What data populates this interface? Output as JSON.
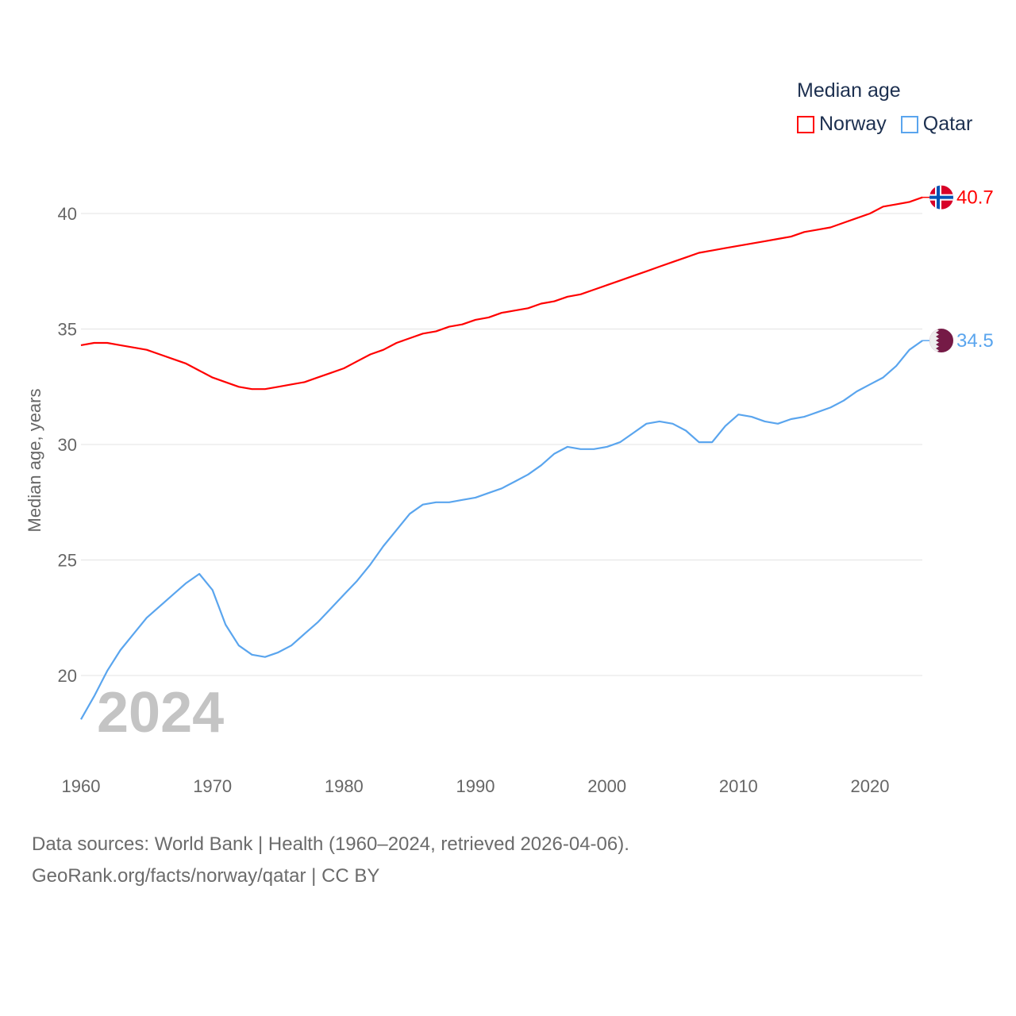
{
  "chart_data": {
    "type": "line",
    "title": "Median age",
    "xlabel": "",
    "ylabel": "Median age, years",
    "xlim": [
      1960,
      2024
    ],
    "ylim": [
      18,
      41
    ],
    "yticks": [
      20,
      25,
      30,
      35,
      40
    ],
    "xticks": [
      1960,
      1970,
      1980,
      1990,
      2000,
      2010,
      2020
    ],
    "grid": true,
    "legend_placement": "top-right",
    "year_watermark": "2024",
    "x": [
      1960,
      1961,
      1962,
      1963,
      1964,
      1965,
      1966,
      1967,
      1968,
      1969,
      1970,
      1971,
      1972,
      1973,
      1974,
      1975,
      1976,
      1977,
      1978,
      1979,
      1980,
      1981,
      1982,
      1983,
      1984,
      1985,
      1986,
      1987,
      1988,
      1989,
      1990,
      1991,
      1992,
      1993,
      1994,
      1995,
      1996,
      1997,
      1998,
      1999,
      2000,
      2001,
      2002,
      2003,
      2004,
      2005,
      2006,
      2007,
      2008,
      2009,
      2010,
      2011,
      2012,
      2013,
      2014,
      2015,
      2016,
      2017,
      2018,
      2019,
      2020,
      2021,
      2022,
      2023,
      2024
    ],
    "series": [
      {
        "name": "Norway",
        "color": "#ff0000",
        "end_label": "40.7",
        "values": [
          34.3,
          34.4,
          34.4,
          34.3,
          34.2,
          34.1,
          33.9,
          33.7,
          33.5,
          33.2,
          32.9,
          32.7,
          32.5,
          32.4,
          32.4,
          32.5,
          32.6,
          32.7,
          32.9,
          33.1,
          33.3,
          33.6,
          33.9,
          34.1,
          34.4,
          34.6,
          34.8,
          34.9,
          35.1,
          35.2,
          35.4,
          35.5,
          35.7,
          35.8,
          35.9,
          36.1,
          36.2,
          36.4,
          36.5,
          36.7,
          36.9,
          37.1,
          37.3,
          37.5,
          37.7,
          37.9,
          38.1,
          38.3,
          38.4,
          38.5,
          38.6,
          38.7,
          38.8,
          38.9,
          39.0,
          39.2,
          39.3,
          39.4,
          39.6,
          39.8,
          40.0,
          40.3,
          40.4,
          40.5,
          40.7
        ]
      },
      {
        "name": "Qatar",
        "color": "#5aa5ee",
        "end_label": "34.5",
        "values": [
          18.1,
          19.1,
          20.2,
          21.1,
          21.8,
          22.5,
          23.0,
          23.5,
          24.0,
          24.4,
          23.7,
          22.2,
          21.3,
          20.9,
          20.8,
          21.0,
          21.3,
          21.8,
          22.3,
          22.9,
          23.5,
          24.1,
          24.8,
          25.6,
          26.3,
          27.0,
          27.4,
          27.5,
          27.5,
          27.6,
          27.7,
          27.9,
          28.1,
          28.4,
          28.7,
          29.1,
          29.6,
          29.9,
          29.8,
          29.8,
          29.9,
          30.1,
          30.5,
          30.9,
          31.0,
          30.9,
          30.6,
          30.1,
          30.1,
          30.8,
          31.3,
          31.2,
          31.0,
          30.9,
          31.1,
          31.2,
          31.4,
          31.6,
          31.9,
          32.3,
          32.6,
          32.9,
          33.4,
          34.1,
          34.5
        ]
      }
    ]
  },
  "footer": {
    "source_line": "Data sources: World Bank | Health (1960–2024, retrieved 2026-04-06).",
    "credit_line": "GeoRank.org/facts/norway/qatar | CC BY"
  }
}
